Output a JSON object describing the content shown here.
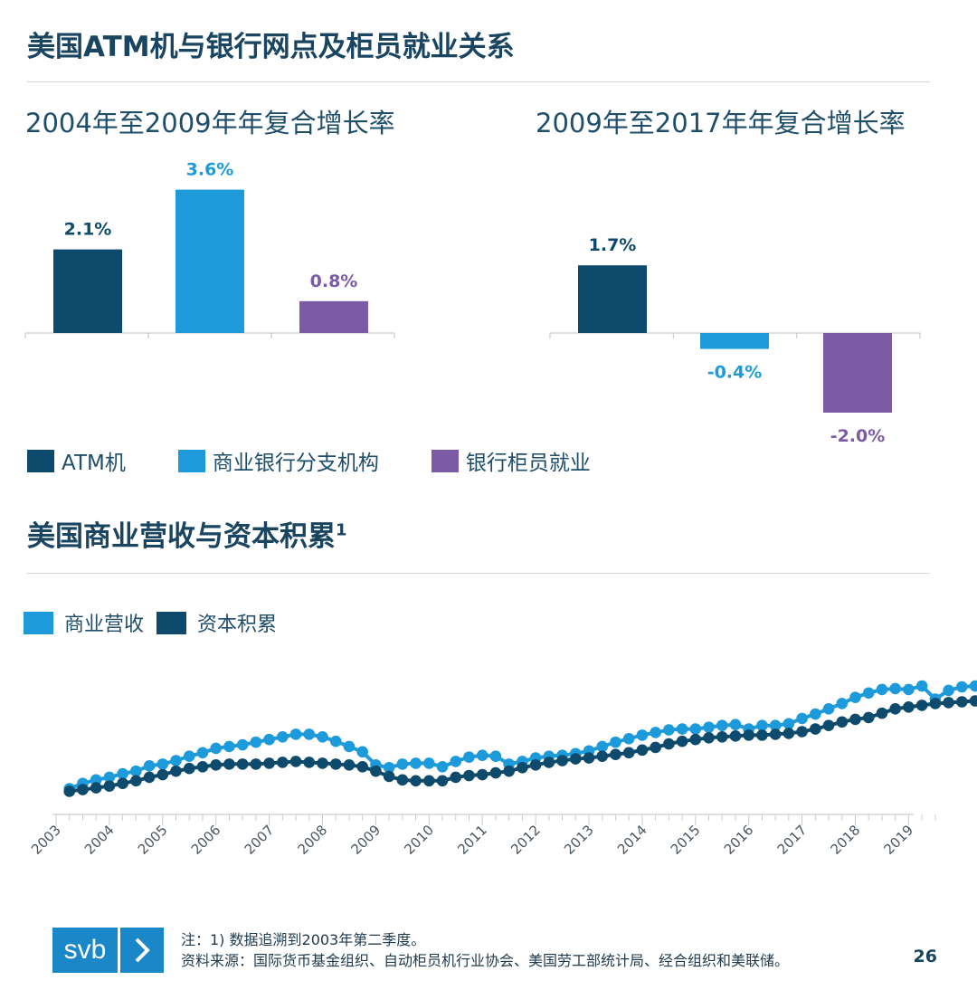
{
  "titles": {
    "section1": "美国ATM机与银行网点及柜员就业关系",
    "section2": "美国商业营收与资本积累",
    "section2_sup": "1"
  },
  "colors": {
    "atm": "#0e4a6b",
    "branch": "#1d9ad9",
    "teller": "#7b5aa6",
    "revenue": "#1d9ad9",
    "capital": "#0e4a6b"
  },
  "legend1": [
    "ATM机",
    "商业银行分支机构",
    "银行柜员就业"
  ],
  "legend2": [
    "商业营收",
    "资本积累"
  ],
  "footer": {
    "note": "注：1) 数据追溯到2003年第二季度。",
    "source": "资料来源：国际货币基金组织、自动柜员机行业协会、美国劳工部统计局、经合组织和美联储。",
    "page": "26",
    "logo_text": "svb",
    "logo_icon": "chevron-right-icon"
  },
  "chart_data": [
    {
      "type": "bar",
      "title": "2004年至2009年年复合增长率",
      "categories": [
        "ATM机",
        "商业银行分支机构",
        "银行柜员就业"
      ],
      "values": [
        2.1,
        3.6,
        0.8
      ],
      "labels": [
        "2.1%",
        "3.6%",
        "0.8%"
      ]
    },
    {
      "type": "bar",
      "title": "2009年至2017年年复合增长率",
      "categories": [
        "ATM机",
        "商业银行分支机构",
        "银行柜员就业"
      ],
      "values": [
        1.7,
        -0.4,
        -2.0
      ],
      "labels": [
        "1.7%",
        "-0.4%",
        "-2.0%"
      ]
    },
    {
      "type": "line",
      "x_ticks": [
        "2003",
        "2004",
        "2005",
        "2006",
        "2007",
        "2008",
        "2009",
        "2010",
        "2011",
        "2012",
        "2013",
        "2014",
        "2015",
        "2016",
        "2017",
        "2018",
        "2019"
      ],
      "x_start": 2003.25,
      "x_step": 0.25,
      "series": [
        {
          "name": "商业营收",
          "values": [
            18,
            24,
            28,
            31,
            35,
            38,
            44,
            46,
            50,
            55,
            59,
            64,
            66,
            68,
            71,
            74,
            77,
            80,
            80,
            77,
            72,
            66,
            60,
            45,
            42,
            46,
            47,
            47,
            43,
            49,
            54,
            56,
            55,
            46,
            49,
            53,
            55,
            56,
            58,
            61,
            66,
            71,
            75,
            79,
            82,
            85,
            86,
            86,
            88,
            90,
            91,
            86,
            90,
            90,
            92,
            98,
            103,
            109,
            115,
            122,
            127,
            131,
            132,
            131,
            135,
            120,
            130,
            134,
            135
          ]
        },
        {
          "name": "资本积累",
          "values": [
            15,
            17,
            19,
            21,
            24,
            27,
            31,
            34,
            38,
            41,
            43,
            45,
            46,
            46,
            46,
            47,
            48,
            49,
            48,
            47,
            46,
            45,
            43,
            38,
            32,
            28,
            27,
            27,
            27,
            31,
            33,
            34,
            36,
            38,
            42,
            45,
            48,
            50,
            52,
            53,
            55,
            57,
            59,
            62,
            65,
            69,
            72,
            74,
            76,
            77,
            78,
            79,
            79,
            80,
            81,
            83,
            86,
            90,
            94,
            97,
            99,
            104,
            109,
            111,
            113,
            115,
            116,
            117,
            118
          ]
        }
      ]
    }
  ]
}
